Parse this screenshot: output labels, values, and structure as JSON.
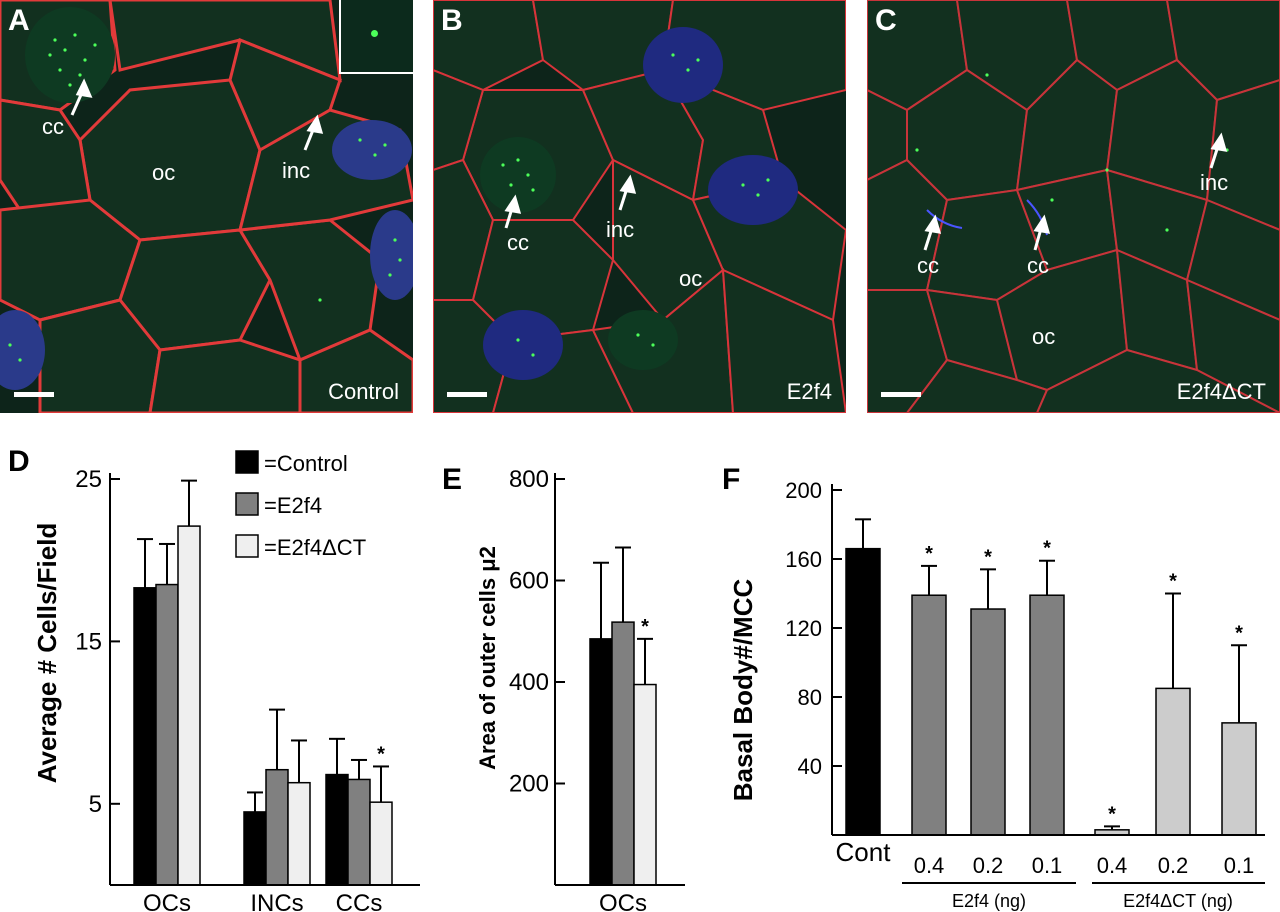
{
  "panels": {
    "A": {
      "letter": "A",
      "condition": "Control",
      "labels": {
        "cc": "cc",
        "oc": "oc",
        "inc": "inc"
      }
    },
    "B": {
      "letter": "B",
      "condition": "E2f4",
      "labels": {
        "cc": "cc",
        "inc": "inc",
        "oc": "oc"
      }
    },
    "C": {
      "letter": "C",
      "condition": "E2f4ΔCT",
      "labels": {
        "inc": "inc",
        "cc1": "cc",
        "cc2": "cc",
        "oc": "oc"
      }
    }
  },
  "colors": {
    "control": "#000000",
    "e2f4": "#808080",
    "e2f4dct": "#efefef",
    "f_e2f4dct": "#cccccc",
    "membrane": "#e23a3a",
    "cilia": "#4a55ff",
    "basal_body": "#38e24a"
  },
  "chart_data": [
    {
      "panel": "D",
      "type": "bar",
      "ylabel": "Average # Cells/Field",
      "ylim": [
        0,
        25
      ],
      "yticks": [
        "5",
        "15",
        "25"
      ],
      "categories": [
        "OCs",
        "INCs",
        "CCs"
      ],
      "legend_placement": "top-right",
      "legend": [
        "=Control",
        "=E2f4",
        "=E2f4ΔCT"
      ],
      "series": [
        {
          "name": "Control",
          "values": [
            18.3,
            4.5,
            6.8
          ],
          "errors": [
            3.0,
            1.2,
            2.2
          ]
        },
        {
          "name": "E2f4",
          "values": [
            18.5,
            7.1,
            6.5
          ],
          "errors": [
            2.5,
            3.7,
            1.2
          ]
        },
        {
          "name": "E2f4ΔCT",
          "values": [
            22.1,
            6.3,
            5.1
          ],
          "errors": [
            2.8,
            2.6,
            2.2
          ]
        }
      ],
      "significance": [
        [
          null,
          null,
          "*"
        ]
      ]
    },
    {
      "panel": "E",
      "type": "bar",
      "ylabel": "Area of outer cells μ2",
      "ylim": [
        0,
        800
      ],
      "yticks": [
        "200",
        "400",
        "600",
        "800"
      ],
      "categories": [
        "OCs"
      ],
      "series": [
        {
          "name": "Control",
          "values": [
            485
          ],
          "errors": [
            150
          ]
        },
        {
          "name": "E2f4",
          "values": [
            518
          ],
          "errors": [
            147
          ]
        },
        {
          "name": "E2f4ΔCT",
          "values": [
            395
          ],
          "errors": [
            90
          ]
        }
      ],
      "significance_marker": "*"
    },
    {
      "panel": "F",
      "type": "bar",
      "ylabel": "Basal Body#/MCC",
      "ylim": [
        0,
        200
      ],
      "yticks": [
        "40",
        "80",
        "120",
        "160",
        "200"
      ],
      "categories": [
        "Cont",
        "0.4",
        "0.2",
        "0.1",
        "0.4",
        "0.2",
        "0.1"
      ],
      "group_labels": [
        "E2f4 (ng)",
        "E2f4ΔCT (ng)"
      ],
      "values": [
        166,
        139,
        131,
        139,
        3,
        85,
        65
      ],
      "errors": [
        17,
        17,
        23,
        20,
        2,
        55,
        45
      ],
      "significance": [
        "",
        "*",
        "*",
        "*",
        "*",
        "*",
        "*"
      ]
    }
  ]
}
